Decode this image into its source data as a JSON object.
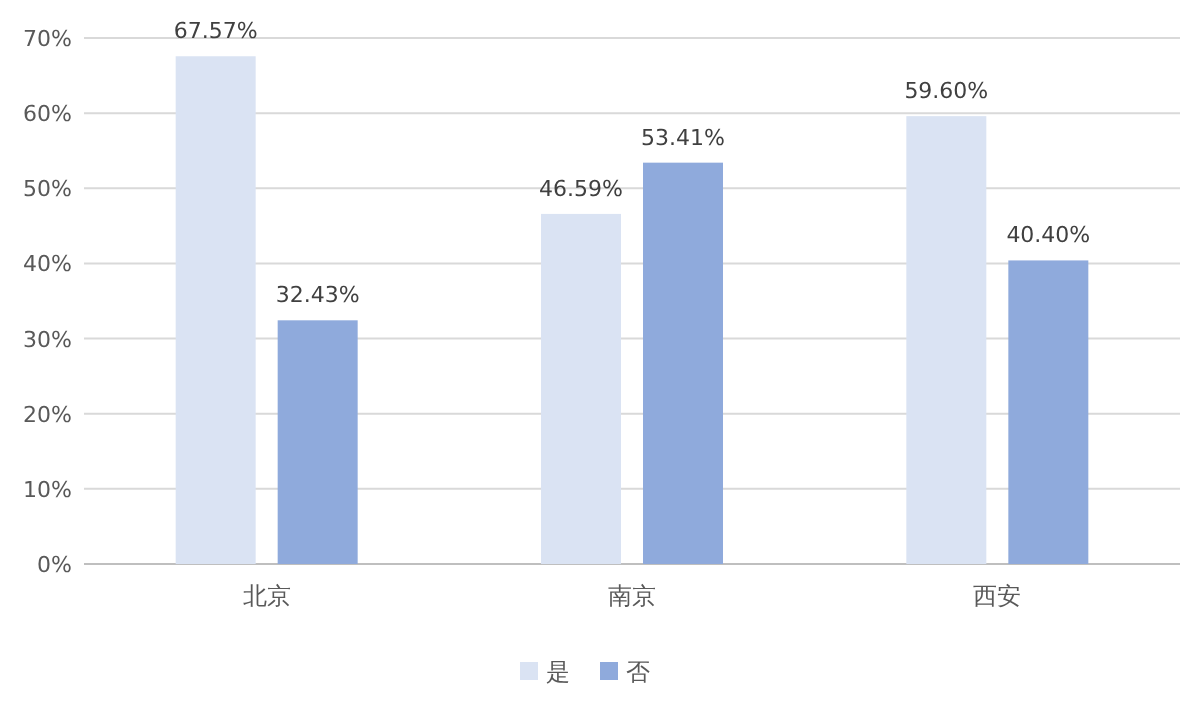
{
  "chart_data": {
    "type": "bar",
    "categories": [
      "北京",
      "南京",
      "西安"
    ],
    "series": [
      {
        "name": "是",
        "color": "#dae3f3",
        "values": [
          67.57,
          46.59,
          59.6
        ],
        "value_labels": [
          "67.57%",
          "46.59%",
          "59.60%"
        ]
      },
      {
        "name": "否",
        "color": "#8faadc",
        "values": [
          32.43,
          53.41,
          40.4
        ],
        "value_labels": [
          "32.43%",
          "53.41%",
          "40.40%"
        ]
      }
    ],
    "ylim": [
      0,
      70
    ],
    "yticks": [
      {
        "value": 0,
        "label": "0%"
      },
      {
        "value": 10,
        "label": "10%"
      },
      {
        "value": 20,
        "label": "20%"
      },
      {
        "value": 30,
        "label": "30%"
      },
      {
        "value": 40,
        "label": "40%"
      },
      {
        "value": 50,
        "label": "50%"
      },
      {
        "value": 60,
        "label": "60%"
      },
      {
        "value": 70,
        "label": "70%"
      }
    ],
    "grid": "y",
    "legend": "bottom"
  }
}
